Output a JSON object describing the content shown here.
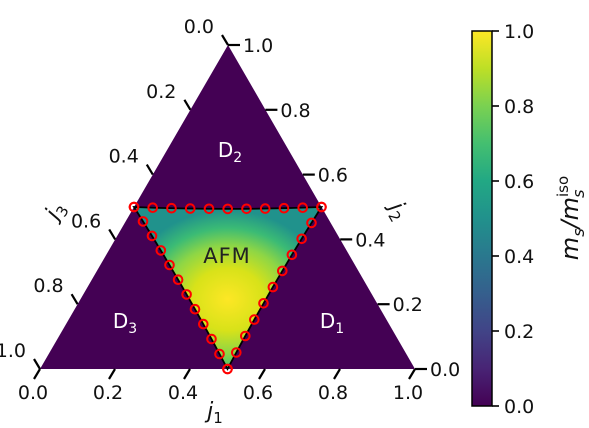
{
  "chart_data": {
    "type": "ternary-phase-diagram",
    "axes": {
      "j1": {
        "label": "j",
        "sub": "1",
        "ticks": [
          "0.0",
          "0.2",
          "0.4",
          "0.6",
          "0.8",
          "1.0"
        ]
      },
      "j2": {
        "label": "j",
        "sub": "2",
        "ticks": [
          "0.0",
          "0.2",
          "0.4",
          "0.6",
          "0.8",
          "1.0"
        ]
      },
      "j3": {
        "label": "j",
        "sub": "3",
        "ticks": [
          "0.0",
          "0.2",
          "0.4",
          "0.6",
          "0.8",
          "1.0"
        ]
      }
    },
    "regions": [
      {
        "name": "D",
        "sub": "1",
        "value": 0.0,
        "color": "#440154"
      },
      {
        "name": "D",
        "sub": "2",
        "value": 0.0,
        "color": "#440154"
      },
      {
        "name": "D",
        "sub": "3",
        "value": 0.0,
        "color": "#440154"
      },
      {
        "name": "AFM",
        "sub": "",
        "value_center": 1.0,
        "value_edge": 0.35
      }
    ],
    "afm_region_vertices_j1_j2_j3": [
      [
        0.5,
        0.5,
        0.0
      ],
      [
        0.0,
        0.5,
        0.5
      ],
      [
        0.5,
        0.0,
        0.5
      ]
    ],
    "transition_points": {
      "color": "#ff0000",
      "edge_top_j1": [
        0.0,
        0.07,
        0.14,
        0.21,
        0.26,
        0.27,
        0.28,
        0.29,
        0.35,
        0.42,
        0.5
      ],
      "edge_left_j1": [
        0.04,
        0.08,
        0.12,
        0.16,
        0.21,
        0.22,
        0.23,
        0.28,
        0.33,
        0.38,
        0.43,
        0.47
      ],
      "edge_right_j1": [
        0.55,
        0.59,
        0.63,
        0.68,
        0.74,
        0.75,
        0.76,
        0.8,
        0.85,
        0.9,
        0.95
      ]
    },
    "colorbar": {
      "colormap": "viridis",
      "label": "m",
      "label_sub": "s",
      "label_sep": "/m",
      "label_sup": "iso",
      "label_sub2": "s",
      "ticks": [
        "0.0",
        "0.2",
        "0.4",
        "0.6",
        "0.8",
        "1.0"
      ],
      "range": [
        0,
        1
      ]
    }
  }
}
